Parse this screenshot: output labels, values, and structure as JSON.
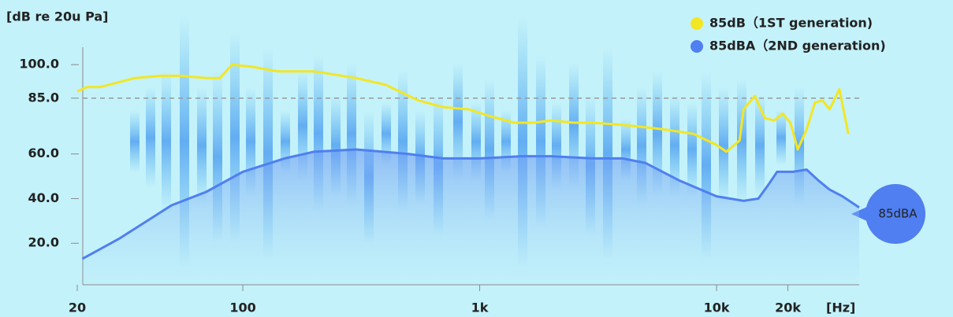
{
  "chart_data": {
    "type": "line",
    "y_axis_label": "[dB re 20u Pa]",
    "x_unit_label": "[Hz]",
    "log_x": true,
    "xlim": [
      20,
      40000
    ],
    "xticks": [
      20,
      100,
      {
        "value": 1000,
        "label": "1k"
      },
      {
        "value": 10000,
        "label": "10k"
      },
      {
        "value": 20000,
        "label": "20k"
      }
    ],
    "ylim": [
      0,
      105
    ],
    "yticks": [
      {
        "value": 20,
        "label": "20.0"
      },
      {
        "value": 40,
        "label": "40.0"
      },
      {
        "value": 60,
        "label": "60.0"
      },
      {
        "value": 85,
        "label": "85.0"
      },
      {
        "value": 100,
        "label": "100.0"
      }
    ],
    "reference_line": 85,
    "legend": "top-right",
    "end_label": "85dBA",
    "series": [
      {
        "name": "85dB（1ST generation)",
        "color": "#f3e623",
        "x": [
          20,
          22,
          25,
          35,
          45,
          55,
          70,
          80,
          90,
          110,
          140,
          200,
          300,
          400,
          550,
          700,
          900,
          1100,
          1400,
          1700,
          2000,
          2500,
          3000,
          4000,
          5000,
          6000,
          8000,
          10000,
          11000,
          12500,
          13000,
          14500,
          16000,
          17500,
          19000,
          20500,
          22000,
          24000,
          26000,
          28000,
          30000,
          33000,
          36000
        ],
        "values": [
          88,
          90,
          90,
          94,
          95,
          95,
          94,
          94,
          100,
          99,
          97,
          97,
          94,
          91,
          84,
          81,
          80,
          77,
          74,
          74,
          75,
          74,
          74,
          73,
          72,
          71,
          69,
          64,
          61,
          66,
          80,
          86,
          76,
          75,
          78,
          74,
          62,
          71,
          83,
          84,
          80,
          89,
          69
        ]
      },
      {
        "name": "85dBA（2ND generation)",
        "color": "#4f7ff0",
        "x": [
          21,
          30,
          50,
          70,
          100,
          150,
          200,
          300,
          500,
          700,
          1000,
          1500,
          2000,
          3000,
          4000,
          5000,
          7000,
          10000,
          13000,
          15000,
          16500,
          18000,
          21000,
          24000,
          27000,
          30000,
          34000,
          40000
        ],
        "values": [
          13,
          22,
          37,
          43,
          52,
          58,
          61,
          62,
          60,
          58,
          58,
          59,
          59,
          58,
          58,
          56,
          48,
          41,
          39,
          40,
          46,
          52,
          52,
          53,
          48,
          44,
          41,
          36
        ]
      }
    ]
  }
}
